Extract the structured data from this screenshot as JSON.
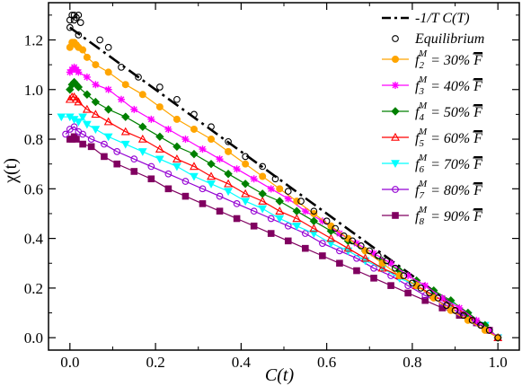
{
  "chart_data": {
    "type": "scatter",
    "xlabel": "C(t)",
    "ylabel": "χ(t)",
    "xlim": [
      -0.05,
      1.05
    ],
    "ylim": [
      -0.05,
      1.35
    ],
    "xticks": [
      0.0,
      0.2,
      0.4,
      0.6,
      0.8,
      1.0
    ],
    "yticks": [
      0.0,
      0.2,
      0.4,
      0.6,
      0.8,
      1.0,
      1.2
    ],
    "xtick_labels": [
      "0.0",
      "0.2",
      "0.4",
      "0.6",
      "0.8",
      "1.0"
    ],
    "ytick_labels": [
      "0.0",
      "0.2",
      "0.4",
      "0.6",
      "0.8",
      "1.0",
      "1.2"
    ],
    "legend_position": "top-right",
    "reference_line": {
      "name": "-1/T C(T)",
      "x": [
        0.0,
        1.0
      ],
      "y": [
        1.25,
        0.0
      ],
      "color": "#000000",
      "style": "dash-dot"
    },
    "series": [
      {
        "name": "Equilibrium",
        "marker": "circle-open",
        "color": "#000000",
        "line": false,
        "x": [
          0.0,
          0.005,
          0.01,
          0.015,
          0.02,
          0.025,
          0.0,
          0.01,
          0.02,
          0.07,
          0.09,
          0.12,
          0.16,
          0.21,
          0.25,
          0.29,
          0.33,
          0.37,
          0.41,
          0.45,
          0.48,
          0.51,
          0.54,
          0.57,
          0.6,
          0.62,
          0.64,
          0.66,
          0.68,
          0.7,
          0.72,
          0.74,
          0.76,
          0.78,
          0.8,
          0.82,
          0.84,
          0.86,
          0.88,
          0.9,
          0.92,
          0.94,
          0.96,
          0.98,
          1.0
        ],
        "y": [
          1.28,
          1.3,
          1.3,
          1.29,
          1.3,
          1.27,
          1.25,
          1.28,
          1.22,
          1.2,
          1.17,
          1.09,
          1.05,
          1.01,
          0.96,
          0.9,
          0.85,
          0.79,
          0.73,
          0.69,
          0.64,
          0.59,
          0.55,
          0.51,
          0.47,
          0.44,
          0.41,
          0.39,
          0.37,
          0.35,
          0.33,
          0.31,
          0.28,
          0.25,
          0.22,
          0.2,
          0.18,
          0.16,
          0.13,
          0.11,
          0.09,
          0.07,
          0.05,
          0.03,
          0.0
        ]
      },
      {
        "name": "f_2^M = 30% F",
        "label_main": "f",
        "label_sub": "2",
        "label_sup": "M",
        "label_rest": " = 30% ",
        "label_bar": "F",
        "marker": "circle-filled",
        "color": "#ffa500",
        "line": true,
        "x": [
          0.0,
          0.005,
          0.01,
          0.015,
          0.02,
          0.03,
          0.04,
          0.06,
          0.09,
          0.13,
          0.17,
          0.21,
          0.25,
          0.29,
          0.33,
          0.37,
          0.41,
          0.45,
          0.49,
          0.53,
          0.57,
          0.61,
          0.65,
          0.69,
          0.73,
          0.77,
          0.81,
          0.85,
          0.89,
          0.93,
          0.97,
          1.0
        ],
        "y": [
          1.17,
          1.19,
          1.19,
          1.18,
          1.17,
          1.16,
          1.13,
          1.1,
          1.07,
          1.02,
          0.98,
          0.93,
          0.88,
          0.84,
          0.8,
          0.75,
          0.7,
          0.65,
          0.6,
          0.55,
          0.5,
          0.45,
          0.4,
          0.35,
          0.3,
          0.25,
          0.21,
          0.16,
          0.11,
          0.07,
          0.03,
          0.0
        ]
      },
      {
        "name": "f_3^M = 40% F",
        "label_main": "f",
        "label_sub": "3",
        "label_sup": "M",
        "label_rest": " = 40% ",
        "label_bar": "F",
        "marker": "star",
        "color": "#ff00ff",
        "line": true,
        "x": [
          0.0,
          0.005,
          0.01,
          0.015,
          0.02,
          0.04,
          0.06,
          0.09,
          0.12,
          0.15,
          0.19,
          0.23,
          0.27,
          0.31,
          0.35,
          0.39,
          0.43,
          0.47,
          0.51,
          0.55,
          0.59,
          0.63,
          0.67,
          0.71,
          0.75,
          0.79,
          0.83,
          0.87,
          0.91,
          0.95,
          0.98,
          1.0
        ],
        "y": [
          1.07,
          1.08,
          1.09,
          1.08,
          1.07,
          1.05,
          1.02,
          1.0,
          0.96,
          0.92,
          0.88,
          0.84,
          0.8,
          0.76,
          0.72,
          0.68,
          0.64,
          0.6,
          0.56,
          0.51,
          0.47,
          0.42,
          0.38,
          0.34,
          0.3,
          0.25,
          0.21,
          0.16,
          0.12,
          0.07,
          0.03,
          0.0
        ]
      },
      {
        "name": "f_4^M = 50% F",
        "label_main": "f",
        "label_sub": "4",
        "label_sup": "M",
        "label_rest": " = 50% ",
        "label_bar": "F",
        "marker": "diamond-filled",
        "color": "#008000",
        "line": true,
        "x": [
          0.0,
          0.005,
          0.01,
          0.015,
          0.02,
          0.04,
          0.06,
          0.09,
          0.13,
          0.17,
          0.21,
          0.25,
          0.29,
          0.33,
          0.37,
          0.41,
          0.45,
          0.49,
          0.53,
          0.57,
          0.61,
          0.65,
          0.69,
          0.73,
          0.77,
          0.81,
          0.85,
          0.89,
          0.93,
          0.97,
          1.0
        ],
        "y": [
          1.0,
          1.02,
          1.03,
          1.02,
          1.01,
          0.98,
          0.95,
          0.92,
          0.89,
          0.85,
          0.81,
          0.77,
          0.74,
          0.7,
          0.66,
          0.62,
          0.58,
          0.55,
          0.51,
          0.47,
          0.43,
          0.39,
          0.35,
          0.31,
          0.27,
          0.23,
          0.19,
          0.15,
          0.1,
          0.05,
          0.0
        ]
      },
      {
        "name": "f_5^M = 60% F",
        "label_main": "f",
        "label_sub": "5",
        "label_sup": "M",
        "label_rest": " = 60% ",
        "label_bar": "F",
        "marker": "triangle-open",
        "color": "#ff0000",
        "line": true,
        "x": [
          0.0,
          0.005,
          0.01,
          0.015,
          0.02,
          0.04,
          0.06,
          0.09,
          0.13,
          0.17,
          0.21,
          0.25,
          0.29,
          0.33,
          0.37,
          0.41,
          0.45,
          0.49,
          0.53,
          0.57,
          0.61,
          0.65,
          0.69,
          0.73,
          0.77,
          0.81,
          0.85,
          0.89,
          0.93,
          0.97,
          1.0
        ],
        "y": [
          0.96,
          0.97,
          0.97,
          0.96,
          0.95,
          0.92,
          0.9,
          0.87,
          0.83,
          0.8,
          0.76,
          0.72,
          0.69,
          0.65,
          0.62,
          0.58,
          0.55,
          0.51,
          0.48,
          0.44,
          0.4,
          0.36,
          0.32,
          0.28,
          0.25,
          0.21,
          0.17,
          0.13,
          0.09,
          0.05,
          0.0
        ]
      },
      {
        "name": "f_6^M = 70% F",
        "label_main": "f",
        "label_sub": "6",
        "label_sup": "M",
        "label_rest": " = 70% ",
        "label_bar": "F",
        "marker": "triangle-down-filled",
        "color": "#00ffff",
        "line": true,
        "x": [
          -0.02,
          0.0,
          0.01,
          0.02,
          0.03,
          0.04,
          0.06,
          0.09,
          0.13,
          0.17,
          0.21,
          0.25,
          0.29,
          0.33,
          0.37,
          0.41,
          0.45,
          0.49,
          0.53,
          0.57,
          0.61,
          0.65,
          0.69,
          0.73,
          0.77,
          0.81,
          0.85,
          0.89,
          0.93,
          0.97,
          1.0
        ],
        "y": [
          0.89,
          0.89,
          0.88,
          0.87,
          0.89,
          0.86,
          0.84,
          0.81,
          0.78,
          0.75,
          0.72,
          0.69,
          0.65,
          0.62,
          0.59,
          0.55,
          0.52,
          0.48,
          0.45,
          0.42,
          0.38,
          0.35,
          0.31,
          0.28,
          0.24,
          0.21,
          0.17,
          0.13,
          0.09,
          0.05,
          0.0
        ]
      },
      {
        "name": "f_7^M = 80% F",
        "label_main": "f",
        "label_sub": "7",
        "label_sup": "M",
        "label_rest": " = 80% ",
        "label_bar": "F",
        "marker": "circle-open",
        "color": "#9400d3",
        "line": true,
        "x": [
          -0.01,
          0.0,
          0.01,
          0.02,
          0.03,
          0.05,
          0.08,
          0.11,
          0.15,
          0.19,
          0.23,
          0.27,
          0.31,
          0.35,
          0.39,
          0.43,
          0.47,
          0.51,
          0.55,
          0.59,
          0.63,
          0.67,
          0.71,
          0.75,
          0.79,
          0.83,
          0.87,
          0.91,
          0.95,
          0.98,
          1.0
        ],
        "y": [
          0.82,
          0.84,
          0.85,
          0.83,
          0.82,
          0.8,
          0.78,
          0.75,
          0.72,
          0.69,
          0.66,
          0.63,
          0.6,
          0.57,
          0.54,
          0.51,
          0.48,
          0.45,
          0.42,
          0.38,
          0.35,
          0.32,
          0.28,
          0.25,
          0.21,
          0.17,
          0.14,
          0.1,
          0.06,
          0.03,
          0.0
        ]
      },
      {
        "name": "f_8^M = 90% F",
        "label_main": "f",
        "label_sub": "8",
        "label_sup": "M",
        "label_rest": " = 90% ",
        "label_bar": "F",
        "marker": "square-filled",
        "color": "#800060",
        "line": true,
        "x": [
          0.0,
          0.005,
          0.01,
          0.015,
          0.03,
          0.05,
          0.08,
          0.11,
          0.15,
          0.19,
          0.23,
          0.27,
          0.31,
          0.35,
          0.39,
          0.43,
          0.47,
          0.51,
          0.55,
          0.59,
          0.63,
          0.67,
          0.71,
          0.75,
          0.79,
          0.83,
          0.87,
          0.91,
          0.95,
          0.98,
          1.0
        ],
        "y": [
          0.8,
          0.8,
          0.81,
          0.8,
          0.78,
          0.77,
          0.73,
          0.7,
          0.67,
          0.64,
          0.6,
          0.57,
          0.54,
          0.51,
          0.48,
          0.45,
          0.42,
          0.39,
          0.36,
          0.33,
          0.3,
          0.27,
          0.24,
          0.21,
          0.18,
          0.15,
          0.12,
          0.09,
          0.06,
          0.03,
          0.0
        ]
      }
    ]
  }
}
